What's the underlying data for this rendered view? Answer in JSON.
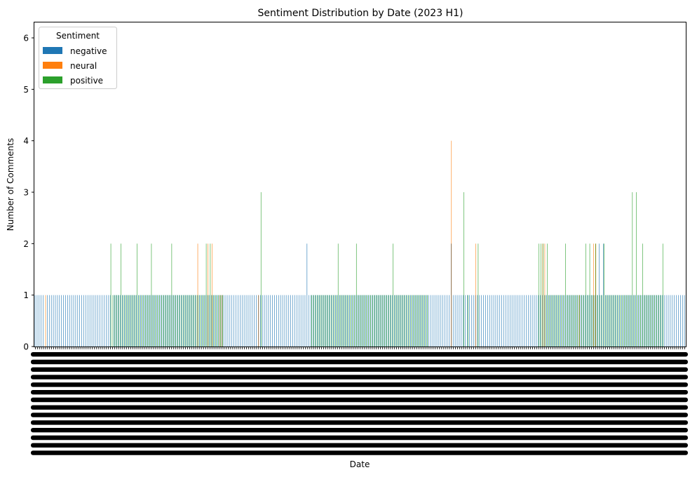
{
  "chart_data": {
    "type": "bar",
    "title": "Sentiment Distribution by Date (2023 H1)",
    "xlabel": "Date",
    "ylabel": "Number of Comments",
    "ylim": [
      0,
      6.3
    ],
    "yticks": [
      0,
      1,
      2,
      3,
      4,
      5,
      6
    ],
    "legend": {
      "title": "Sentiment",
      "placement": "top-left"
    },
    "colors": {
      "negative": "#1f77b4",
      "neural": "#ff7f0e",
      "positive": "#2ca02c"
    },
    "category_count": 310,
    "series": [
      {
        "name": "negative",
        "values": [
          1,
          1,
          1,
          1,
          1,
          0,
          1,
          1,
          1,
          1,
          1,
          1,
          1,
          1,
          1,
          1,
          1,
          1,
          1,
          1,
          1,
          1,
          1,
          1,
          1,
          1,
          1,
          1,
          1,
          1,
          1,
          1,
          1,
          1,
          1,
          1,
          1,
          1,
          0,
          1,
          1,
          1,
          1,
          1,
          1,
          1,
          1,
          1,
          1,
          1,
          1,
          1,
          1,
          1,
          1,
          1,
          1,
          1,
          1,
          1,
          1,
          1,
          1,
          1,
          1,
          1,
          1,
          1,
          1,
          1,
          1,
          1,
          1,
          1,
          1,
          1,
          1,
          1,
          1,
          1,
          1,
          1,
          1,
          1,
          1,
          1,
          1,
          1,
          1,
          1,
          1,
          1,
          1,
          1,
          1,
          1,
          1,
          1,
          1,
          1,
          1,
          1,
          1,
          1,
          1,
          1,
          1,
          1,
          1,
          1,
          1,
          1,
          1,
          1,
          1,
          1,
          1,
          1,
          1,
          1,
          1,
          1,
          1,
          1,
          1,
          1,
          1,
          1,
          1,
          1,
          1,
          1,
          1,
          1,
          2,
          1,
          1,
          1,
          1,
          1,
          1,
          1,
          1,
          1,
          1,
          1,
          1,
          1,
          1,
          1,
          1,
          1,
          1,
          1,
          1,
          1,
          1,
          1,
          1,
          1,
          1,
          1,
          1,
          1,
          1,
          1,
          1,
          1,
          1,
          1,
          1,
          1,
          1,
          1,
          1,
          1,
          1,
          1,
          1,
          1,
          1,
          1,
          1,
          1,
          1,
          1,
          1,
          1,
          1,
          1,
          1,
          1,
          1,
          1,
          1,
          1,
          1,
          1,
          1,
          1,
          1,
          1,
          1,
          1,
          1,
          2,
          1,
          1,
          1,
          1,
          1,
          1,
          1,
          1,
          1,
          1,
          1,
          1,
          1,
          1,
          1,
          1,
          1,
          1,
          1,
          1,
          1,
          1,
          1,
          1,
          1,
          1,
          1,
          1,
          1,
          1,
          1,
          1,
          1,
          1,
          1,
          1,
          1,
          1,
          1,
          1,
          1,
          1,
          1,
          1,
          1,
          1,
          1,
          1,
          1,
          1,
          1,
          1,
          1,
          1,
          1,
          1,
          1,
          1,
          1,
          1,
          1,
          1,
          1,
          1,
          1,
          1,
          1,
          1,
          1,
          1,
          1,
          1,
          2,
          1,
          2,
          1,
          1,
          1,
          1,
          1,
          1,
          1,
          1,
          1,
          1,
          1,
          1,
          1,
          1,
          1,
          1,
          1,
          1,
          1,
          1,
          1,
          1,
          1,
          1,
          1,
          1,
          1,
          1,
          1,
          1,
          1,
          1,
          1,
          1,
          1,
          1,
          1,
          1,
          1,
          1
        ]
      },
      {
        "name": "neural",
        "values": [
          0,
          0,
          0,
          0,
          0,
          1,
          0,
          0,
          0,
          0,
          0,
          0,
          0,
          0,
          0,
          0,
          0,
          0,
          0,
          0,
          0,
          0,
          0,
          0,
          0,
          0,
          0,
          0,
          0,
          0,
          0,
          0,
          0,
          0,
          0,
          0,
          0,
          0,
          0,
          0,
          0,
          0,
          0,
          0,
          0,
          0,
          0,
          0,
          0,
          0,
          0,
          0,
          0,
          0,
          0,
          0,
          0,
          0,
          0,
          0,
          0,
          0,
          0,
          0,
          0,
          0,
          0,
          0,
          0,
          0,
          0,
          0,
          0,
          0,
          0,
          0,
          0,
          0,
          0,
          0,
          2,
          0,
          0,
          0,
          0,
          2,
          0,
          2,
          0,
          0,
          0,
          1,
          1,
          0,
          0,
          0,
          0,
          0,
          0,
          0,
          0,
          0,
          0,
          0,
          0,
          0,
          0,
          0,
          0,
          0,
          1,
          0,
          0,
          0,
          0,
          0,
          0,
          0,
          0,
          0,
          0,
          0,
          0,
          0,
          0,
          0,
          0,
          0,
          0,
          0,
          0,
          0,
          0,
          0,
          0,
          0,
          0,
          0,
          0,
          0,
          0,
          0,
          0,
          0,
          0,
          0,
          0,
          0,
          0,
          0,
          0,
          0,
          0,
          0,
          0,
          0,
          0,
          0,
          0,
          0,
          0,
          0,
          0,
          0,
          0,
          0,
          0,
          0,
          0,
          0,
          0,
          0,
          0,
          0,
          0,
          0,
          0,
          0,
          0,
          0,
          0,
          0,
          0,
          0,
          0,
          0,
          0,
          0,
          0,
          0,
          0,
          0,
          0,
          0,
          0,
          0,
          0,
          0,
          0,
          0,
          0,
          0,
          0,
          0,
          0,
          4,
          0,
          0,
          0,
          0,
          0,
          0,
          0,
          0,
          0,
          0,
          0,
          2,
          0,
          0,
          0,
          0,
          0,
          0,
          0,
          0,
          0,
          0,
          0,
          0,
          0,
          0,
          0,
          0,
          0,
          0,
          0,
          0,
          0,
          0,
          0,
          0,
          0,
          0,
          0,
          0,
          0,
          0,
          0,
          0,
          2,
          2,
          0,
          0,
          0,
          0,
          0,
          0,
          0,
          0,
          0,
          0,
          0,
          0,
          0,
          0,
          0,
          0,
          1,
          0,
          0,
          0,
          0,
          0,
          0,
          2,
          2,
          0,
          0,
          0,
          0,
          0,
          0,
          0,
          0,
          0,
          0,
          0,
          0,
          0,
          0,
          0,
          0,
          0,
          0,
          0,
          0,
          0,
          0,
          0,
          0,
          0,
          0,
          0,
          0,
          0,
          0,
          0,
          0,
          0,
          0,
          0,
          0,
          0
        ]
      },
      {
        "name": "positive",
        "values": [
          0,
          0,
          0,
          0,
          0,
          0,
          0,
          0,
          0,
          0,
          0,
          0,
          0,
          0,
          0,
          0,
          0,
          0,
          0,
          0,
          0,
          0,
          0,
          0,
          0,
          0,
          0,
          0,
          0,
          0,
          0,
          0,
          0,
          0,
          0,
          0,
          0,
          2,
          1,
          1,
          1,
          1,
          2,
          1,
          1,
          1,
          1,
          1,
          1,
          1,
          2,
          1,
          1,
          1,
          1,
          1,
          1,
          2,
          1,
          1,
          1,
          1,
          1,
          1,
          1,
          1,
          1,
          2,
          1,
          1,
          1,
          1,
          1,
          1,
          1,
          1,
          1,
          1,
          1,
          1,
          1,
          1,
          1,
          1,
          2,
          1,
          2,
          1,
          1,
          1,
          1,
          1,
          1,
          0,
          0,
          0,
          0,
          0,
          0,
          0,
          0,
          0,
          0,
          0,
          0,
          0,
          0,
          0,
          0,
          0,
          0,
          3,
          0,
          0,
          0,
          0,
          0,
          0,
          0,
          0,
          0,
          0,
          0,
          0,
          0,
          0,
          0,
          0,
          0,
          0,
          0,
          0,
          0,
          0,
          0,
          0,
          1,
          1,
          1,
          1,
          1,
          1,
          1,
          1,
          1,
          1,
          1,
          1,
          1,
          2,
          1,
          1,
          1,
          1,
          1,
          1,
          1,
          1,
          2,
          1,
          1,
          1,
          1,
          1,
          1,
          1,
          1,
          1,
          1,
          1,
          1,
          1,
          1,
          1,
          1,
          1,
          2,
          1,
          1,
          1,
          1,
          1,
          1,
          1,
          1,
          1,
          1,
          1,
          1,
          1,
          1,
          1,
          1,
          1,
          0,
          0,
          0,
          0,
          0,
          0,
          0,
          0,
          0,
          0,
          0,
          0,
          0,
          0,
          0,
          0,
          0,
          3,
          0,
          1,
          0,
          0,
          0,
          0,
          2,
          0,
          0,
          0,
          0,
          0,
          0,
          0,
          0,
          0,
          0,
          0,
          0,
          0,
          0,
          0,
          0,
          0,
          0,
          0,
          0,
          0,
          0,
          0,
          0,
          0,
          0,
          0,
          0,
          0,
          2,
          2,
          2,
          1,
          2,
          1,
          1,
          1,
          1,
          1,
          1,
          1,
          1,
          2,
          1,
          1,
          1,
          1,
          1,
          1,
          1,
          1,
          1,
          2,
          1,
          2,
          1,
          1,
          2,
          1,
          1,
          1,
          2,
          1,
          1,
          1,
          1,
          1,
          1,
          1,
          1,
          1,
          1,
          1,
          1,
          1,
          3,
          1,
          3,
          1,
          1,
          2,
          1,
          1,
          1,
          1,
          1,
          1,
          1,
          1,
          1,
          2,
          0,
          0,
          0,
          0,
          0,
          0
        ]
      }
    ]
  }
}
